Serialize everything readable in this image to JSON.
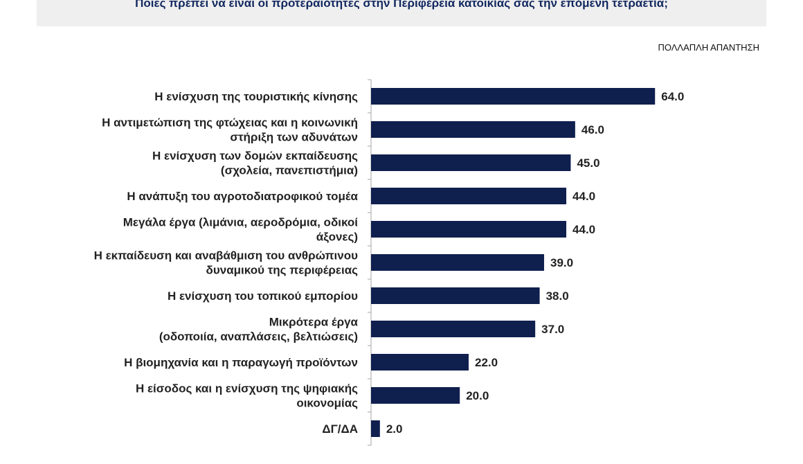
{
  "header": {
    "title": "Ποιες πρέπει να είναι οι προτεραιότητες στην Περιφέρεια κατοικίας σας την επόμενη τετραετία;",
    "answer_note": "ΠΟΛΛΑΠΛΗ ΑΠΑΝΤΗΣΗ"
  },
  "colors": {
    "bar": "#0f1f4e",
    "header_band": "#efefef",
    "title_text": "#12285f"
  },
  "chart_data": {
    "type": "bar",
    "orientation": "horizontal",
    "categories": [
      [
        "Η ενίσχυση της τουριστικής κίνησης"
      ],
      [
        "Η αντιμετώπιση της φτώχειας και η κοινωνική",
        "στήριξη των αδυνάτων"
      ],
      [
        "Η ενίσχυση των δομών εκπαίδευσης",
        "(σχολεία, πανεπιστήμια)"
      ],
      [
        "Η ανάπυξη του αγροτοδιατροφικού τομέα"
      ],
      [
        "Μεγάλα έργα (λιμάνια, αεροδρόμια, οδικοί",
        "άξονες)"
      ],
      [
        "Η εκπαίδευση και αναβάθμιση του ανθρώπινου",
        "δυναμικού της περιφέρειας"
      ],
      [
        "Η ενίσχυση του τοπικού εμπορίου"
      ],
      [
        "Μικρότερα έργα",
        "(οδοποιία, αναπλάσεις, βελτιώσεις)"
      ],
      [
        "Η βιομηχανία και η παραγωγή προϊόντων"
      ],
      [
        "Η είσοδος και η ενίσχυση της ψηφιακής",
        "οικονομίας"
      ],
      [
        "ΔΓ/ΔΑ"
      ]
    ],
    "values": [
      64.0,
      46.0,
      45.0,
      44.0,
      44.0,
      39.0,
      38.0,
      37.0,
      22.0,
      20.0,
      2.0
    ],
    "value_labels": [
      "64.0",
      "46.0",
      "45.0",
      "44.0",
      "44.0",
      "39.0",
      "38.0",
      "37.0",
      "22.0",
      "20.0",
      "2.0"
    ],
    "xlim": [
      0,
      100
    ],
    "grid": false,
    "legend": "none"
  }
}
